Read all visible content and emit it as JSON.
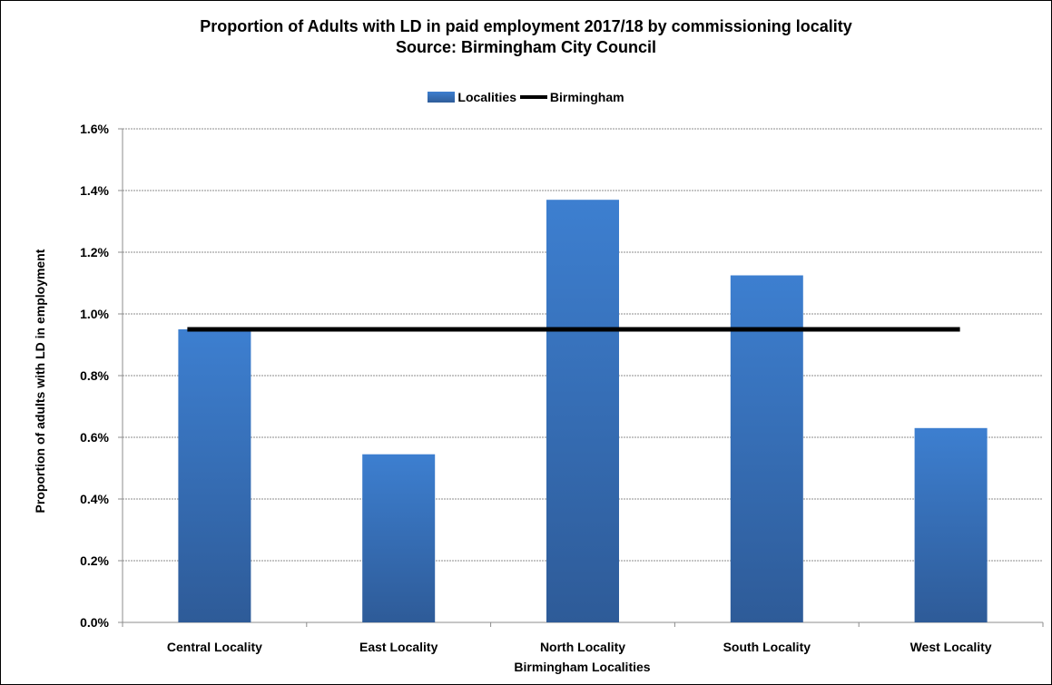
{
  "chart_data": {
    "type": "bar",
    "title_line1": "Proportion of Adults with LD in paid employment 2017/18 by commissioning locality",
    "title_line2": "Source: Birmingham City Council",
    "xlabel": "Birmingham Localities",
    "ylabel": "Proportion of adults with LD in employment",
    "categories": [
      "Central Locality",
      "East Locality",
      "North Locality",
      "South Locality",
      "West Locality"
    ],
    "series": [
      {
        "name": "Localities",
        "type": "bar",
        "values": [
          0.95,
          0.545,
          1.37,
          1.125,
          0.63
        ],
        "color": "#3a76c4"
      },
      {
        "name": "Birmingham",
        "type": "line",
        "values": [
          0.95,
          0.95,
          0.95,
          0.95,
          0.95
        ],
        "color": "#000000"
      }
    ],
    "ylim": [
      0,
      1.6
    ],
    "yticks": [
      "0.0%",
      "0.2%",
      "0.4%",
      "0.6%",
      "0.8%",
      "1.0%",
      "1.2%",
      "1.4%",
      "1.6%"
    ],
    "grid": true,
    "legend_position": "top-center"
  }
}
